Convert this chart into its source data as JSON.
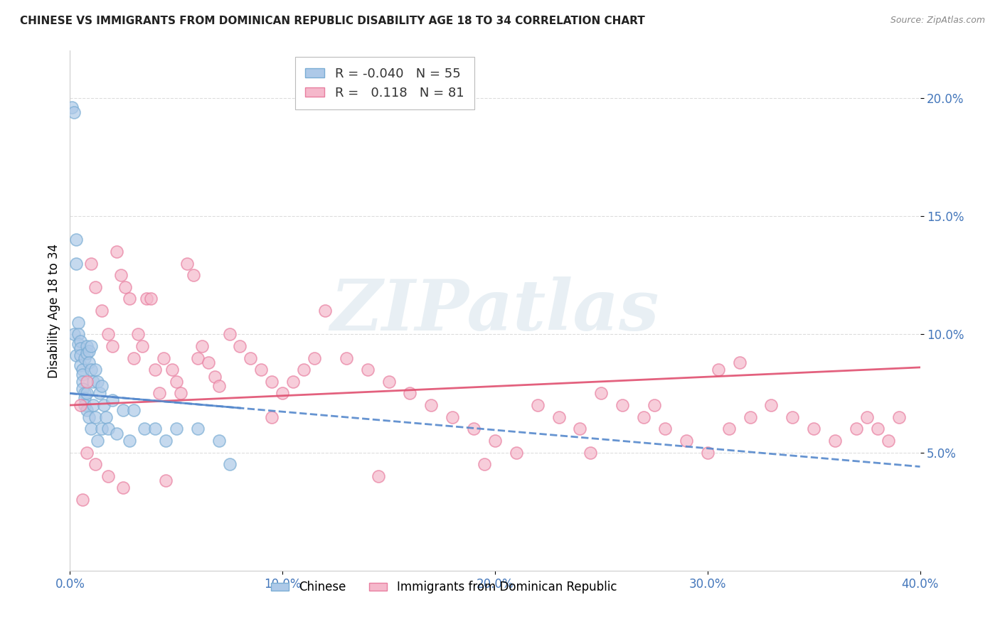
{
  "title": "CHINESE VS IMMIGRANTS FROM DOMINICAN REPUBLIC DISABILITY AGE 18 TO 34 CORRELATION CHART",
  "source": "Source: ZipAtlas.com",
  "ylabel": "Disability Age 18 to 34",
  "xlim": [
    0.0,
    0.4
  ],
  "ylim": [
    0.0,
    0.22
  ],
  "ytick_labels": [
    "5.0%",
    "10.0%",
    "15.0%",
    "20.0%"
  ],
  "ytick_vals": [
    0.05,
    0.1,
    0.15,
    0.2
  ],
  "xtick_vals": [
    0.0,
    0.1,
    0.2,
    0.3,
    0.4
  ],
  "xtick_labels": [
    "0.0%",
    "10.0%",
    "20.0%",
    "30.0%",
    "40.0%"
  ],
  "chinese_color": "#adc9e8",
  "dominican_color": "#f5b8cb",
  "chinese_edge_color": "#7aadd4",
  "dominican_edge_color": "#e87fa0",
  "chinese_line_color": "#5588cc",
  "dominican_line_color": "#e05070",
  "chinese_R": -0.04,
  "chinese_N": 55,
  "dominican_R": 0.118,
  "dominican_N": 81,
  "watermark": "ZIPatlas",
  "legend_chinese": "Chinese",
  "legend_dominican": "Immigrants from Dominican Republic",
  "chinese_x": [
    0.001,
    0.002,
    0.002,
    0.003,
    0.003,
    0.003,
    0.004,
    0.004,
    0.004,
    0.005,
    0.005,
    0.005,
    0.005,
    0.006,
    0.006,
    0.006,
    0.006,
    0.007,
    0.007,
    0.007,
    0.007,
    0.008,
    0.008,
    0.008,
    0.008,
    0.009,
    0.009,
    0.009,
    0.01,
    0.01,
    0.01,
    0.011,
    0.011,
    0.012,
    0.012,
    0.013,
    0.013,
    0.014,
    0.015,
    0.015,
    0.016,
    0.017,
    0.018,
    0.02,
    0.022,
    0.025,
    0.028,
    0.03,
    0.035,
    0.04,
    0.045,
    0.05,
    0.06,
    0.07,
    0.075
  ],
  "chinese_y": [
    0.196,
    0.194,
    0.1,
    0.14,
    0.13,
    0.091,
    0.105,
    0.1,
    0.096,
    0.097,
    0.094,
    0.091,
    0.087,
    0.085,
    0.083,
    0.08,
    0.077,
    0.075,
    0.073,
    0.07,
    0.09,
    0.095,
    0.092,
    0.075,
    0.068,
    0.093,
    0.088,
    0.065,
    0.095,
    0.085,
    0.06,
    0.08,
    0.07,
    0.085,
    0.065,
    0.08,
    0.055,
    0.075,
    0.078,
    0.06,
    0.07,
    0.065,
    0.06,
    0.072,
    0.058,
    0.068,
    0.055,
    0.068,
    0.06,
    0.06,
    0.055,
    0.06,
    0.06,
    0.055,
    0.045
  ],
  "dominican_x": [
    0.005,
    0.008,
    0.01,
    0.012,
    0.015,
    0.018,
    0.02,
    0.022,
    0.024,
    0.026,
    0.028,
    0.03,
    0.032,
    0.034,
    0.036,
    0.038,
    0.04,
    0.042,
    0.044,
    0.048,
    0.05,
    0.052,
    0.055,
    0.058,
    0.06,
    0.062,
    0.065,
    0.068,
    0.07,
    0.075,
    0.08,
    0.085,
    0.09,
    0.095,
    0.1,
    0.105,
    0.11,
    0.115,
    0.12,
    0.13,
    0.14,
    0.15,
    0.16,
    0.17,
    0.18,
    0.19,
    0.2,
    0.21,
    0.22,
    0.23,
    0.24,
    0.25,
    0.26,
    0.27,
    0.28,
    0.29,
    0.3,
    0.31,
    0.32,
    0.33,
    0.34,
    0.35,
    0.36,
    0.37,
    0.375,
    0.38,
    0.385,
    0.39,
    0.305,
    0.315,
    0.275,
    0.245,
    0.195,
    0.145,
    0.095,
    0.045,
    0.025,
    0.018,
    0.012,
    0.008,
    0.006
  ],
  "dominican_y": [
    0.07,
    0.08,
    0.13,
    0.12,
    0.11,
    0.1,
    0.095,
    0.135,
    0.125,
    0.12,
    0.115,
    0.09,
    0.1,
    0.095,
    0.115,
    0.115,
    0.085,
    0.075,
    0.09,
    0.085,
    0.08,
    0.075,
    0.13,
    0.125,
    0.09,
    0.095,
    0.088,
    0.082,
    0.078,
    0.1,
    0.095,
    0.09,
    0.085,
    0.08,
    0.075,
    0.08,
    0.085,
    0.09,
    0.11,
    0.09,
    0.085,
    0.08,
    0.075,
    0.07,
    0.065,
    0.06,
    0.055,
    0.05,
    0.07,
    0.065,
    0.06,
    0.075,
    0.07,
    0.065,
    0.06,
    0.055,
    0.05,
    0.06,
    0.065,
    0.07,
    0.065,
    0.06,
    0.055,
    0.06,
    0.065,
    0.06,
    0.055,
    0.065,
    0.085,
    0.088,
    0.07,
    0.05,
    0.045,
    0.04,
    0.065,
    0.038,
    0.035,
    0.04,
    0.045,
    0.05,
    0.03
  ],
  "ch_line_x0": 0.0,
  "ch_line_x1": 0.4,
  "ch_line_y0": 0.075,
  "ch_line_y1": 0.044,
  "dr_line_x0": 0.0,
  "dr_line_x1": 0.4,
  "dr_line_y0": 0.07,
  "dr_line_y1": 0.086
}
